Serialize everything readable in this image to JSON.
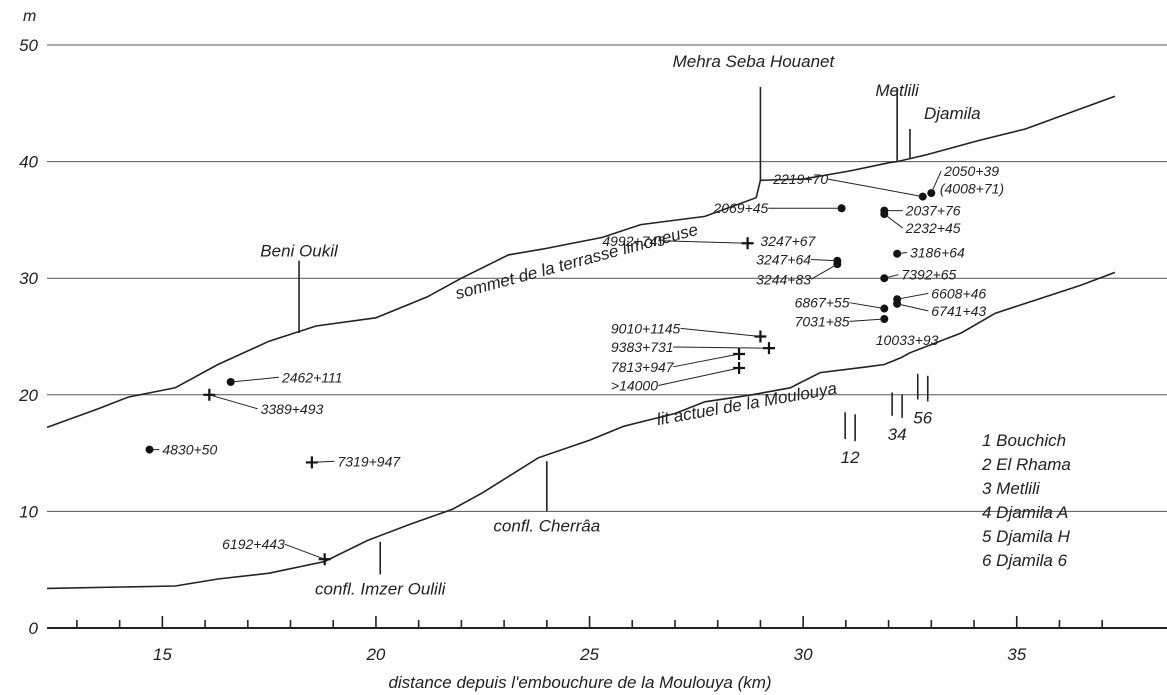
{
  "chart_data": {
    "type": "line",
    "title": "",
    "xlabel": "distance depuis l'embouchure de la Moulouya (km)",
    "ylabel": "m",
    "xlim": [
      12.3,
      37.5
    ],
    "ylim": [
      0,
      50
    ],
    "xticks": [
      "15",
      "20",
      "25",
      "30",
      "35"
    ],
    "xtick_values": [
      15,
      20,
      25,
      30,
      35
    ],
    "yticks": [
      "0",
      "10",
      "20",
      "30",
      "40",
      "50"
    ],
    "ytick_values": [
      0,
      10,
      20,
      30,
      40,
      50
    ],
    "grid": "horizontal",
    "series": [
      {
        "name": "sommet de la terrasse limoneuse",
        "x": [
          12.3,
          13.5,
          14.2,
          15.3,
          16.3,
          17.5,
          18.6,
          20.0,
          21.2,
          22.0,
          23.1,
          23.9,
          25.3,
          26.2,
          27.7,
          28.9,
          29.0,
          30.0,
          31.1,
          32.0,
          32.2,
          32.9,
          34.1,
          35.2,
          36.4,
          37.3
        ],
        "y": [
          17.2,
          18.8,
          19.8,
          20.6,
          22.6,
          24.6,
          25.9,
          26.6,
          28.4,
          30.0,
          32.0,
          32.5,
          33.5,
          34.6,
          35.3,
          36.9,
          38.4,
          38.5,
          39.2,
          39.9,
          40.0,
          40.6,
          41.8,
          42.8,
          44.4,
          45.6
        ]
      },
      {
        "name": "lit actuel de la Moulouya",
        "x": [
          12.3,
          15.3,
          16.3,
          17.5,
          18.8,
          19.8,
          20.8,
          21.8,
          22.5,
          23.8,
          25.0,
          25.8,
          27.0,
          27.7,
          28.8,
          29.7,
          30.4,
          31.5,
          31.9,
          32.3,
          32.5,
          33.7,
          34.5,
          35.5,
          36.5,
          37.3
        ],
        "y": [
          3.4,
          3.6,
          4.2,
          4.7,
          5.7,
          7.5,
          8.9,
          10.2,
          11.6,
          14.6,
          16.1,
          17.3,
          18.4,
          19.4,
          20.0,
          20.6,
          21.9,
          22.4,
          22.6,
          23.2,
          23.6,
          25.3,
          27.0,
          28.2,
          29.4,
          30.5
        ]
      }
    ],
    "terrace_markers": [
      {
        "name": "Beni Oukil",
        "x": 18.2,
        "y_bottom": 25.3,
        "y_top": 31.5
      },
      {
        "name": "Mehra Seba Houanet",
        "x": 29.0,
        "y_bottom": 38.4,
        "y_top": 46.4
      },
      {
        "name": "Metlili",
        "x": 32.2,
        "y_bottom": 40.0,
        "y_top": 46.3
      },
      {
        "name": "Djamila",
        "x": 32.5,
        "y_bottom": 40.2,
        "y_top": 42.8
      }
    ],
    "confluences": [
      {
        "name": "confl. Imzer Oulili",
        "x": 20.1,
        "y_top": 7.4,
        "y_bottom": 4.6
      },
      {
        "name": "confl. Cherrâa",
        "x": 24.0,
        "y_top": 14.3,
        "y_bottom": 10.0
      }
    ],
    "samples": [
      {
        "label": "2462+111",
        "x": 16.6,
        "y": 21.1,
        "marker": "dot",
        "label_x": 17.8,
        "label_y": 21.5
      },
      {
        "label": "3389+493",
        "x": 16.1,
        "y": 20.0,
        "marker": "cross",
        "label_x": 17.3,
        "label_y": 18.8
      },
      {
        "label": "4830+50",
        "x": 14.7,
        "y": 15.3,
        "marker": "dot",
        "label_x": 15.0,
        "label_y": 15.3
      },
      {
        "label": "7319+947",
        "x": 18.5,
        "y": 14.2,
        "marker": "cross",
        "label_x": 19.1,
        "label_y": 14.3
      },
      {
        "label": "6192+443",
        "x": 18.8,
        "y": 5.9,
        "marker": "cross",
        "label_x": 16.4,
        "label_y": 7.2
      },
      {
        "label": "9010+1145",
        "x": 29.0,
        "y": 25.0,
        "marker": "cross",
        "label_x": 25.5,
        "label_y": 25.7
      },
      {
        "label": "9383+731",
        "x": 29.2,
        "y": 24.0,
        "marker": "cross",
        "label_x": 25.5,
        "label_y": 24.1
      },
      {
        "label": "7813+947",
        "x": 28.5,
        "y": 23.5,
        "marker": "cross",
        "label_x": 25.5,
        "label_y": 22.4
      },
      {
        "label": ">14000",
        "x": 28.5,
        "y": 22.3,
        "marker": "cross",
        "label_x": 25.5,
        "label_y": 20.8
      },
      {
        "label": "4992+745",
        "x": 28.7,
        "y": 33.0,
        "marker": "cross",
        "label_x": 25.3,
        "label_y": 33.2
      },
      {
        "label": "3247+67",
        "x": 28.7,
        "y": 33.0,
        "marker": "none",
        "label_x": 29.0,
        "label_y": 33.2
      },
      {
        "label": "3247+64",
        "x": 30.8,
        "y": 31.5,
        "marker": "dot",
        "label_x": 28.9,
        "label_y": 31.6
      },
      {
        "label": "3244+83",
        "x": 30.8,
        "y": 31.2,
        "marker": "dot",
        "label_x": 28.9,
        "label_y": 29.9
      },
      {
        "label": "2069+45",
        "x": 30.9,
        "y": 36.0,
        "marker": "dot",
        "label_x": 27.9,
        "label_y": 36.0
      },
      {
        "label": "2219+70",
        "x": 32.8,
        "y": 37.0,
        "marker": "dot",
        "label_x": 29.3,
        "label_y": 38.5
      },
      {
        "label": "2050+39",
        "x": 33.0,
        "y": 37.3,
        "marker": "dot",
        "label_x": 33.3,
        "label_y": 39.2
      },
      {
        "label": "(4008+71)",
        "x": 32.8,
        "y": 37.0,
        "marker": "none",
        "label_x": 33.2,
        "label_y": 37.7
      },
      {
        "label": "2037+76",
        "x": 31.9,
        "y": 35.8,
        "marker": "dot",
        "label_x": 32.4,
        "label_y": 35.8
      },
      {
        "label": "2232+45",
        "x": 31.9,
        "y": 35.5,
        "marker": "dot",
        "label_x": 32.4,
        "label_y": 34.3
      },
      {
        "label": "3186+64",
        "x": 32.2,
        "y": 32.1,
        "marker": "dot",
        "label_x": 32.5,
        "label_y": 32.2
      },
      {
        "label": "7392+65",
        "x": 31.9,
        "y": 30.0,
        "marker": "dot",
        "label_x": 32.3,
        "label_y": 30.3
      },
      {
        "label": "6608+46",
        "x": 32.2,
        "y": 28.2,
        "marker": "dot",
        "label_x": 33.0,
        "label_y": 28.7
      },
      {
        "label": "6741+43",
        "x": 32.2,
        "y": 27.8,
        "marker": "dot",
        "label_x": 33.0,
        "label_y": 27.2
      },
      {
        "label": "6867+55",
        "x": 31.9,
        "y": 27.4,
        "marker": "dot",
        "label_x": 29.8,
        "label_y": 27.9
      },
      {
        "label": "7031+85",
        "x": 31.9,
        "y": 26.5,
        "marker": "dot",
        "label_x": 29.8,
        "label_y": 26.3
      },
      {
        "label": "10033+93",
        "x": 31.9,
        "y": 26.6,
        "marker": "none",
        "label_x": 31.7,
        "label_y": 24.7
      }
    ],
    "labels": [
      {
        "text": "sommet de la terrasse limoneuse",
        "x": 21.9,
        "y": 28.2,
        "rotate": -15
      },
      {
        "text": "lit actuel de la Moulouya",
        "x": 26.6,
        "y": 17.4,
        "rotate": -10
      }
    ],
    "legend_lines": [
      {
        "label": "12",
        "x": 31.1,
        "y_top": 18.5,
        "y_bottom": 16.2
      },
      {
        "label": "34",
        "x": 32.2,
        "y_top": 20.2,
        "y_bottom": 18.2
      },
      {
        "label": "56",
        "x": 32.8,
        "y_top": 21.8,
        "y_bottom": 19.6
      }
    ],
    "legend": [
      "1 Bouchich",
      "2 El Rhama",
      "3 Metlili",
      "4 Djamila A",
      "5 Djamila H",
      "6 Djamila 6"
    ],
    "legend_position": "bottom-right"
  }
}
